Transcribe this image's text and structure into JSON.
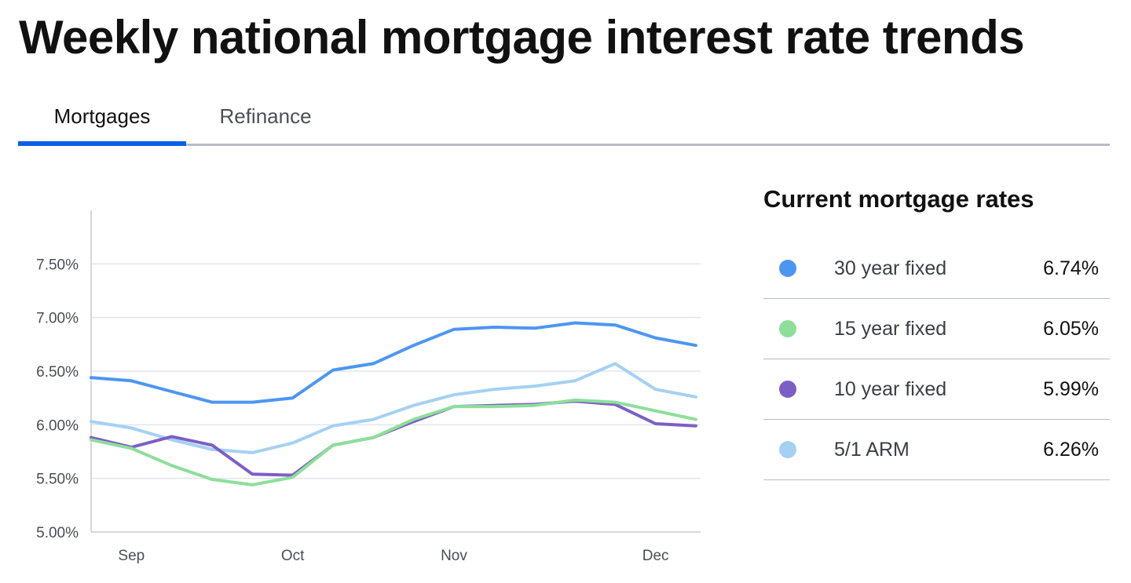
{
  "page": {
    "title": "Weekly national mortgage interest rate trends"
  },
  "tabs": [
    {
      "label": "Mortgages",
      "active": true
    },
    {
      "label": "Refinance",
      "active": false
    }
  ],
  "colors": {
    "accent": "#0c5fe6",
    "rule": "#b8bcc6",
    "grid": "#e3e5ea"
  },
  "rates_panel": {
    "title": "Current mortgage rates",
    "items": [
      {
        "label": "30 year fixed",
        "value": "6.74%",
        "color": "#4c96f3"
      },
      {
        "label": "15 year fixed",
        "value": "6.05%",
        "color": "#8ddf9a"
      },
      {
        "label": "10 year fixed",
        "value": "5.99%",
        "color": "#7b5fc6"
      },
      {
        "label": "5/1 ARM",
        "value": "6.26%",
        "color": "#a4d1f3"
      }
    ]
  },
  "chart_data": {
    "type": "line",
    "title": "",
    "xlabel": "",
    "ylabel": "",
    "ylim": [
      5.0,
      8.0
    ],
    "yticks": [
      5.0,
      5.5,
      6.0,
      6.5,
      7.0,
      7.5
    ],
    "ytick_labels": [
      "5.00%",
      "5.50%",
      "6.00%",
      "6.50%",
      "7.00%",
      "7.50%"
    ],
    "x_labels": [
      {
        "label": "Sep",
        "index": 1
      },
      {
        "label": "Oct",
        "index": 5
      },
      {
        "label": "Nov",
        "index": 9
      },
      {
        "label": "Dec",
        "index": 14
      }
    ],
    "grid": true,
    "legend": "none",
    "series": [
      {
        "name": "30 year fixed",
        "color": "#4c96f3",
        "values": [
          6.44,
          6.41,
          6.31,
          6.21,
          6.21,
          6.25,
          6.51,
          6.57,
          6.74,
          6.89,
          6.91,
          6.9,
          6.95,
          6.93,
          6.81,
          6.74
        ]
      },
      {
        "name": "5/1 ARM",
        "color": "#a4d1f3",
        "values": [
          6.03,
          5.97,
          5.86,
          5.77,
          5.74,
          5.83,
          5.99,
          6.05,
          6.18,
          6.28,
          6.33,
          6.36,
          6.41,
          6.57,
          6.33,
          6.26
        ]
      },
      {
        "name": "10 year fixed",
        "color": "#7b5fc6",
        "values": [
          5.88,
          5.79,
          5.89,
          5.81,
          5.54,
          5.53,
          5.81,
          5.88,
          6.03,
          6.17,
          6.18,
          6.19,
          6.22,
          6.19,
          6.01,
          5.99
        ]
      },
      {
        "name": "15 year fixed",
        "color": "#8ddf9a",
        "values": [
          5.86,
          5.78,
          5.62,
          5.49,
          5.44,
          5.51,
          5.81,
          5.88,
          6.05,
          6.17,
          6.17,
          6.18,
          6.23,
          6.21,
          6.13,
          6.05
        ]
      }
    ]
  }
}
